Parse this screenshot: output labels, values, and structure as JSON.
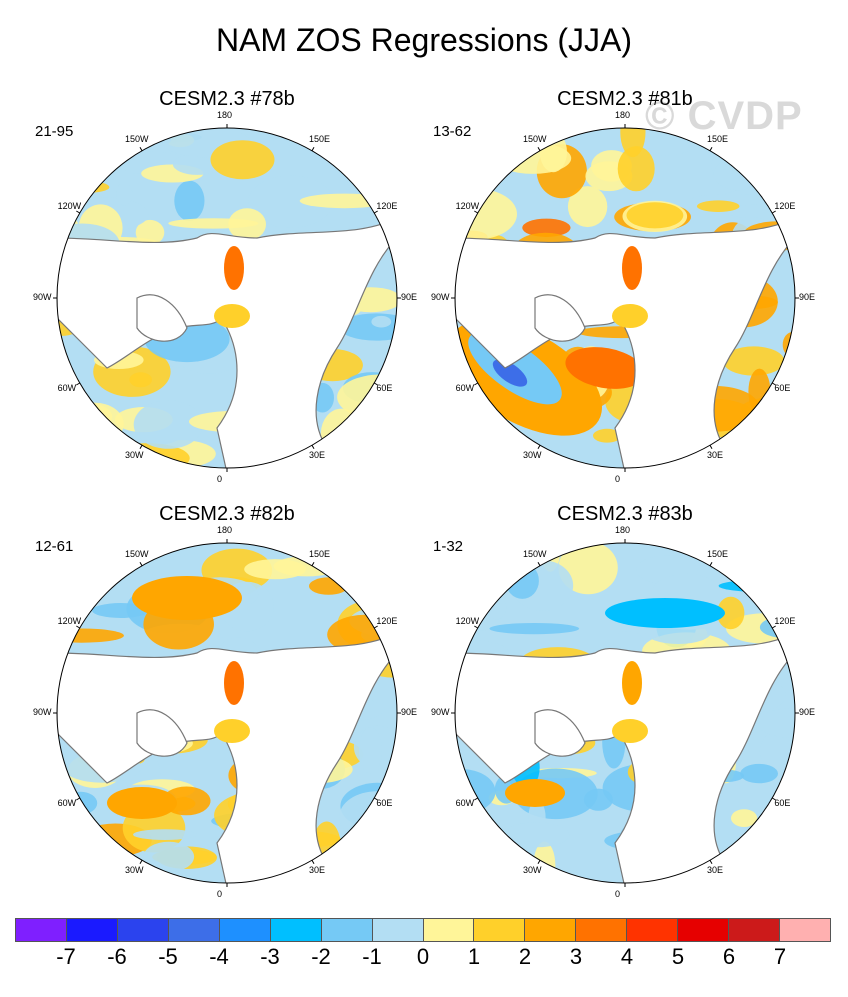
{
  "title": "NAM ZOS Regressions (JJA)",
  "watermark": "© CVDP",
  "panels": [
    {
      "title": "CESM2.3 #78b",
      "range": "21-95",
      "scheme": "mild"
    },
    {
      "title": "CESM2.3 #81b",
      "range": "13-62",
      "scheme": "warm"
    },
    {
      "title": "CESM2.3 #82b",
      "range": "12-61",
      "scheme": "mixed"
    },
    {
      "title": "CESM2.3 #83b",
      "range": "1-32",
      "scheme": "cool"
    }
  ],
  "lon_labels": [
    "180",
    "150E",
    "120E",
    "90E",
    "60E",
    "30E",
    "0",
    "30W",
    "60W",
    "90W",
    "120W",
    "150W"
  ],
  "colorbar": {
    "colors": [
      "#7f1fff",
      "#1a1aff",
      "#2b43ee",
      "#3d6ee8",
      "#1e90ff",
      "#00bfff",
      "#75c9f5",
      "#b3def3",
      "#fff599",
      "#ffd02a",
      "#ffa600",
      "#ff7200",
      "#ff3300",
      "#e60000",
      "#cc1a1a",
      "#ffb0b0"
    ],
    "labels": [
      "-7",
      "-6",
      "-5",
      "-4",
      "-3",
      "-2",
      "-1",
      "0",
      "1",
      "2",
      "3",
      "4",
      "5",
      "6",
      "7"
    ]
  }
}
